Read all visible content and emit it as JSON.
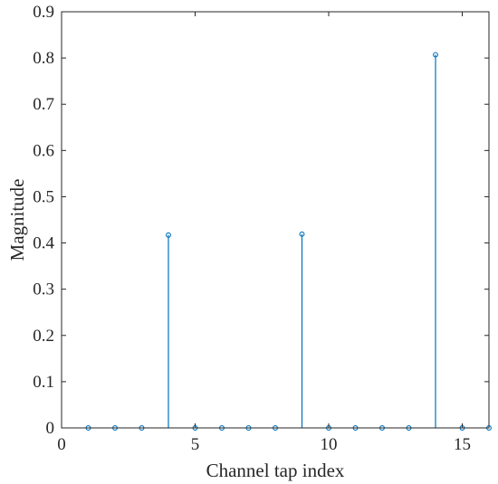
{
  "chart_data": {
    "type": "stem",
    "xlabel": "Channel tap index",
    "ylabel": "Magnitude",
    "xlim": [
      0,
      16
    ],
    "ylim": [
      0,
      0.9
    ],
    "xticks": [
      0,
      5,
      10,
      15
    ],
    "yticks": [
      0,
      0.1,
      0.2,
      0.3,
      0.4,
      0.5,
      0.6,
      0.7,
      0.8,
      0.9
    ],
    "grid": false,
    "series": [
      {
        "color": "#0072BD",
        "x": [
          1,
          2,
          3,
          4,
          5,
          6,
          7,
          8,
          9,
          10,
          11,
          12,
          13,
          14,
          15,
          16
        ],
        "y": [
          0,
          0,
          0,
          0.417,
          0,
          0,
          0,
          0,
          0.419,
          0,
          0,
          0,
          0,
          0.807,
          0,
          0
        ]
      }
    ]
  }
}
